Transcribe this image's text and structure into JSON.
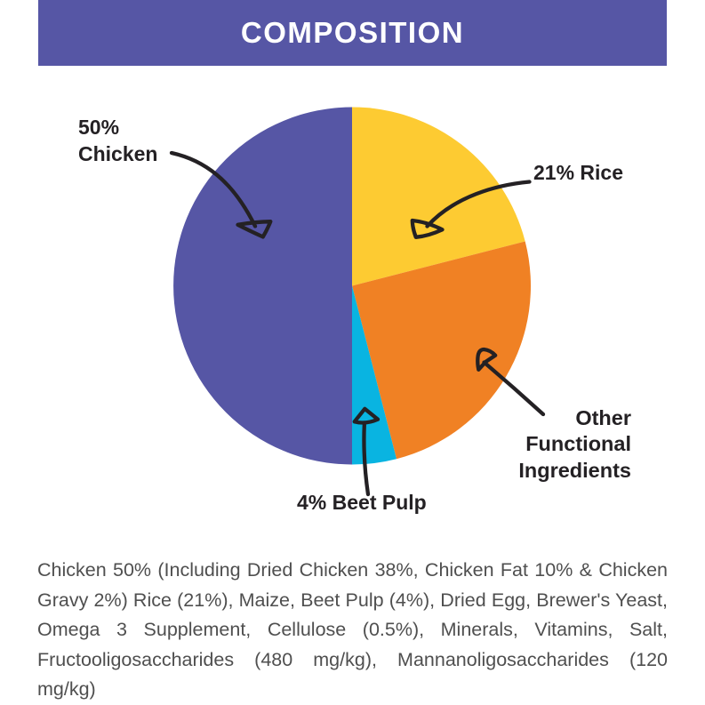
{
  "header": {
    "title": "COMPOSITION",
    "background_color": "#5656a5",
    "text_color": "#ffffff"
  },
  "chart_data": {
    "type": "pie",
    "title": "COMPOSITION",
    "start_angle_deg": 0,
    "direction": "clockwise",
    "legend_position": "none",
    "slices": [
      {
        "id": "rice",
        "name": "Rice",
        "value_pct": 21,
        "color": "#fdcb32",
        "callout_label": "21% Rice"
      },
      {
        "id": "other",
        "name": "Other Functional Ingredients",
        "value_pct": 25,
        "color": "#f08124",
        "callout_label": "Other Functional Ingredients"
      },
      {
        "id": "beet-pulp",
        "name": "Beet Pulp",
        "value_pct": 4,
        "color": "#09b4e1",
        "callout_label": "4% Beet Pulp"
      },
      {
        "id": "chicken",
        "name": "Chicken",
        "value_pct": 50,
        "color": "#5656a5",
        "callout_label": "50% Chicken"
      }
    ]
  },
  "callouts": {
    "chicken": {
      "lines": [
        "50%",
        "Chicken"
      ]
    },
    "rice": {
      "lines": [
        "21% Rice"
      ]
    },
    "other": {
      "lines": [
        "Other",
        "Functional",
        "Ingredients"
      ]
    },
    "beet_pulp": {
      "lines": [
        "4% Beet Pulp"
      ]
    }
  },
  "ingredients_text": {
    "full_text": "Chicken 50% (Including Dried Chicken 38%, Chicken Fat 10% & Chicken Gravy 2%) Rice (21%), Maize, Beet Pulp (4%), Dried Egg, Brewer's Yeast, Omega 3 Supplement, Cellulose (0.5%), Minerals, Vitamins, Salt, Fructooligosaccharides (480 mg/kg), Mannanoligosaccharides (120 mg/kg)",
    "lines": [
      "Chicken 50% (Including Dried Chicken 38%, Chicken Fat 10% & Chicken",
      "Gravy 2%) Rice (21%), Maize, Beet Pulp (4%), Dried Egg, Brewer's Yeast,",
      "Omega 3 Supplement, Cellulose (0.5%), Minerals, Vitamins, Salt,",
      "Fructooligosaccharides (480 mg/kg), Mannanoligosaccharides (120",
      "mg/kg)"
    ]
  },
  "colors": {
    "accent_purple": "#5656a5",
    "yellow": "#fdcb32",
    "orange": "#f08124",
    "cyan": "#09b4e1",
    "ink": "#242124",
    "body_text": "#4f4f4f",
    "background": "#ffffff"
  }
}
